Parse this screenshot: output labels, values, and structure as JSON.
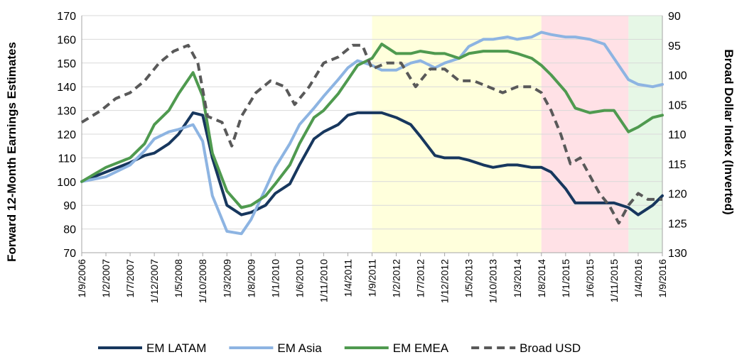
{
  "chart_data": {
    "type": "line",
    "title": "",
    "ylabel": "Forward 12-Month Earnings Estimates",
    "y2label": "Broad Dollar Index (Inverted)",
    "ylim": [
      70,
      170
    ],
    "y2lim": [
      90,
      130
    ],
    "y2_inverted": true,
    "yticks": [
      70,
      80,
      90,
      100,
      110,
      120,
      130,
      140,
      150,
      160,
      170
    ],
    "y2ticks": [
      90,
      95,
      100,
      105,
      110,
      115,
      120,
      125,
      130
    ],
    "grid": true,
    "legend_position": "bottom",
    "xticks": [
      "1/9/2006",
      "1/2/2007",
      "1/7/2007",
      "1/12/2007",
      "1/5/2008",
      "1/10/2008",
      "1/3/2009",
      "1/8/2009",
      "1/1/2010",
      "1/6/2010",
      "1/11/2010",
      "1/4/2011",
      "1/9/2011",
      "1/2/2012",
      "1/7/2012",
      "1/12/2012",
      "1/5/2013",
      "1/10/2013",
      "1/3/2014",
      "1/8/2014",
      "1/1/2015",
      "1/6/2015",
      "1/11/2015",
      "1/4/2016",
      "1/9/2016"
    ],
    "shaded_regions": [
      {
        "from": "1/9/2011",
        "to": "1/8/2014",
        "color": "#ffffdc"
      },
      {
        "from": "1/8/2014",
        "to": "1/2/2016",
        "color": "#ffe1e6"
      },
      {
        "from": "1/2/2016",
        "to": "1/9/2016",
        "color": "#e6f7e6"
      }
    ],
    "series": [
      {
        "name": "EM LATAM",
        "color": "#17375e",
        "dash": false,
        "axis": "left",
        "x": [
          "1/9/2006",
          "1/2/2007",
          "1/7/2007",
          "1/10/2007",
          "1/12/2007",
          "1/3/2008",
          "1/5/2008",
          "1/8/2008",
          "1/10/2008",
          "1/12/2008",
          "1/3/2009",
          "1/6/2009",
          "1/8/2009",
          "1/11/2009",
          "1/1/2010",
          "1/4/2010",
          "1/6/2010",
          "1/9/2010",
          "1/11/2010",
          "1/2/2011",
          "1/4/2011",
          "1/6/2011",
          "1/9/2011",
          "1/11/2011",
          "1/2/2012",
          "1/5/2012",
          "1/7/2012",
          "1/10/2012",
          "1/12/2012",
          "1/3/2013",
          "1/5/2013",
          "1/8/2013",
          "1/10/2013",
          "1/1/2014",
          "1/3/2014",
          "1/6/2014",
          "1/8/2014",
          "1/10/2014",
          "1/1/2015",
          "1/3/2015",
          "1/6/2015",
          "1/9/2015",
          "1/11/2015",
          "1/2/2016",
          "1/4/2016",
          "1/7/2016",
          "1/9/2016"
        ],
        "y": [
          100,
          104,
          108,
          111,
          112,
          116,
          120,
          129,
          128,
          110,
          90,
          86,
          87,
          90,
          95,
          99,
          107,
          118,
          121,
          124,
          128,
          129,
          129,
          129,
          127,
          124,
          119,
          111,
          110,
          110,
          109,
          107,
          106,
          107,
          107,
          106,
          106,
          104,
          97,
          91,
          91,
          91,
          91,
          89,
          86,
          90,
          94
        ]
      },
      {
        "name": "EM Asia",
        "color": "#8db4e2",
        "dash": false,
        "axis": "left",
        "x": [
          "1/9/2006",
          "1/2/2007",
          "1/7/2007",
          "1/10/2007",
          "1/12/2007",
          "1/3/2008",
          "1/5/2008",
          "1/8/2008",
          "1/10/2008",
          "1/12/2008",
          "1/3/2009",
          "1/6/2009",
          "1/8/2009",
          "1/11/2009",
          "1/1/2010",
          "1/4/2010",
          "1/6/2010",
          "1/9/2010",
          "1/11/2010",
          "1/2/2011",
          "1/4/2011",
          "1/6/2011",
          "1/9/2011",
          "1/11/2011",
          "1/2/2012",
          "1/5/2012",
          "1/7/2012",
          "1/10/2012",
          "1/12/2012",
          "1/3/2013",
          "1/5/2013",
          "1/8/2013",
          "1/10/2013",
          "1/1/2014",
          "1/3/2014",
          "1/6/2014",
          "1/8/2014",
          "1/10/2014",
          "1/1/2015",
          "1/3/2015",
          "1/6/2015",
          "1/9/2015",
          "1/11/2015",
          "1/2/2016",
          "1/4/2016",
          "1/7/2016",
          "1/9/2016"
        ],
        "y": [
          100,
          102,
          107,
          113,
          118,
          121,
          122,
          124,
          117,
          94,
          79,
          78,
          84,
          97,
          106,
          116,
          124,
          131,
          136,
          143,
          148,
          151,
          149,
          147,
          147,
          150,
          151,
          148,
          150,
          152,
          157,
          160,
          160,
          161,
          160,
          161,
          163,
          162,
          161,
          161,
          160,
          158,
          152,
          143,
          141,
          140,
          141
        ]
      },
      {
        "name": "EM EMEA",
        "color": "#4f9a4f",
        "dash": false,
        "axis": "left",
        "x": [
          "1/9/2006",
          "1/2/2007",
          "1/7/2007",
          "1/10/2007",
          "1/12/2007",
          "1/3/2008",
          "1/5/2008",
          "1/8/2008",
          "1/10/2008",
          "1/12/2008",
          "1/3/2009",
          "1/6/2009",
          "1/8/2009",
          "1/11/2009",
          "1/1/2010",
          "1/4/2010",
          "1/6/2010",
          "1/9/2010",
          "1/11/2010",
          "1/2/2011",
          "1/4/2011",
          "1/6/2011",
          "1/9/2011",
          "1/11/2011",
          "1/2/2012",
          "1/5/2012",
          "1/7/2012",
          "1/10/2012",
          "1/12/2012",
          "1/3/2013",
          "1/5/2013",
          "1/8/2013",
          "1/10/2013",
          "1/1/2014",
          "1/3/2014",
          "1/6/2014",
          "1/8/2014",
          "1/10/2014",
          "1/1/2015",
          "1/3/2015",
          "1/6/2015",
          "1/9/2015",
          "1/11/2015",
          "1/2/2016",
          "1/4/2016",
          "1/7/2016",
          "1/9/2016"
        ],
        "y": [
          100,
          106,
          110,
          116,
          124,
          130,
          137,
          146,
          136,
          112,
          96,
          89,
          90,
          94,
          99,
          107,
          116,
          127,
          130,
          137,
          143,
          149,
          152,
          158,
          154,
          154,
          155,
          154,
          154,
          152,
          154,
          155,
          155,
          155,
          154,
          152,
          149,
          145,
          138,
          131,
          129,
          130,
          130,
          121,
          123,
          127,
          128
        ]
      },
      {
        "name": "Broad USD",
        "color": "#595959",
        "dash": true,
        "axis": "right",
        "x": [
          "1/9/2006",
          "1/1/2007",
          "1/4/2007",
          "1/7/2007",
          "1/10/2007",
          "1/1/2008",
          "1/4/2008",
          "1/7/2008",
          "1/9/2008",
          "1/11/2008",
          "1/2/2009",
          "1/4/2009",
          "1/6/2009",
          "1/9/2009",
          "1/12/2009",
          "1/3/2010",
          "1/5/2010",
          "1/8/2010",
          "1/11/2010",
          "1/2/2011",
          "1/5/2011",
          "1/7/2011",
          "1/9/2011",
          "1/12/2011",
          "1/3/2012",
          "1/6/2012",
          "1/9/2012",
          "1/12/2012",
          "1/3/2013",
          "1/6/2013",
          "1/9/2013",
          "1/12/2013",
          "1/3/2014",
          "1/6/2014",
          "1/8/2014",
          "1/10/2014",
          "1/12/2014",
          "1/2/2015",
          "1/4/2015",
          "1/6/2015",
          "1/8/2015",
          "1/10/2015",
          "1/12/2015",
          "1/2/2016",
          "1/4/2016",
          "1/6/2016",
          "1/9/2016"
        ],
        "y": [
          108,
          106,
          104,
          103,
          101,
          98,
          96,
          95,
          98,
          107,
          108,
          112,
          107,
          103,
          101,
          102,
          105,
          102,
          98,
          97,
          95,
          95,
          99,
          98,
          98,
          102,
          99,
          99,
          101,
          101,
          102,
          103,
          102,
          102,
          103,
          106,
          110,
          115,
          114,
          117,
          120,
          122,
          125,
          122,
          120,
          121,
          121
        ]
      }
    ]
  }
}
